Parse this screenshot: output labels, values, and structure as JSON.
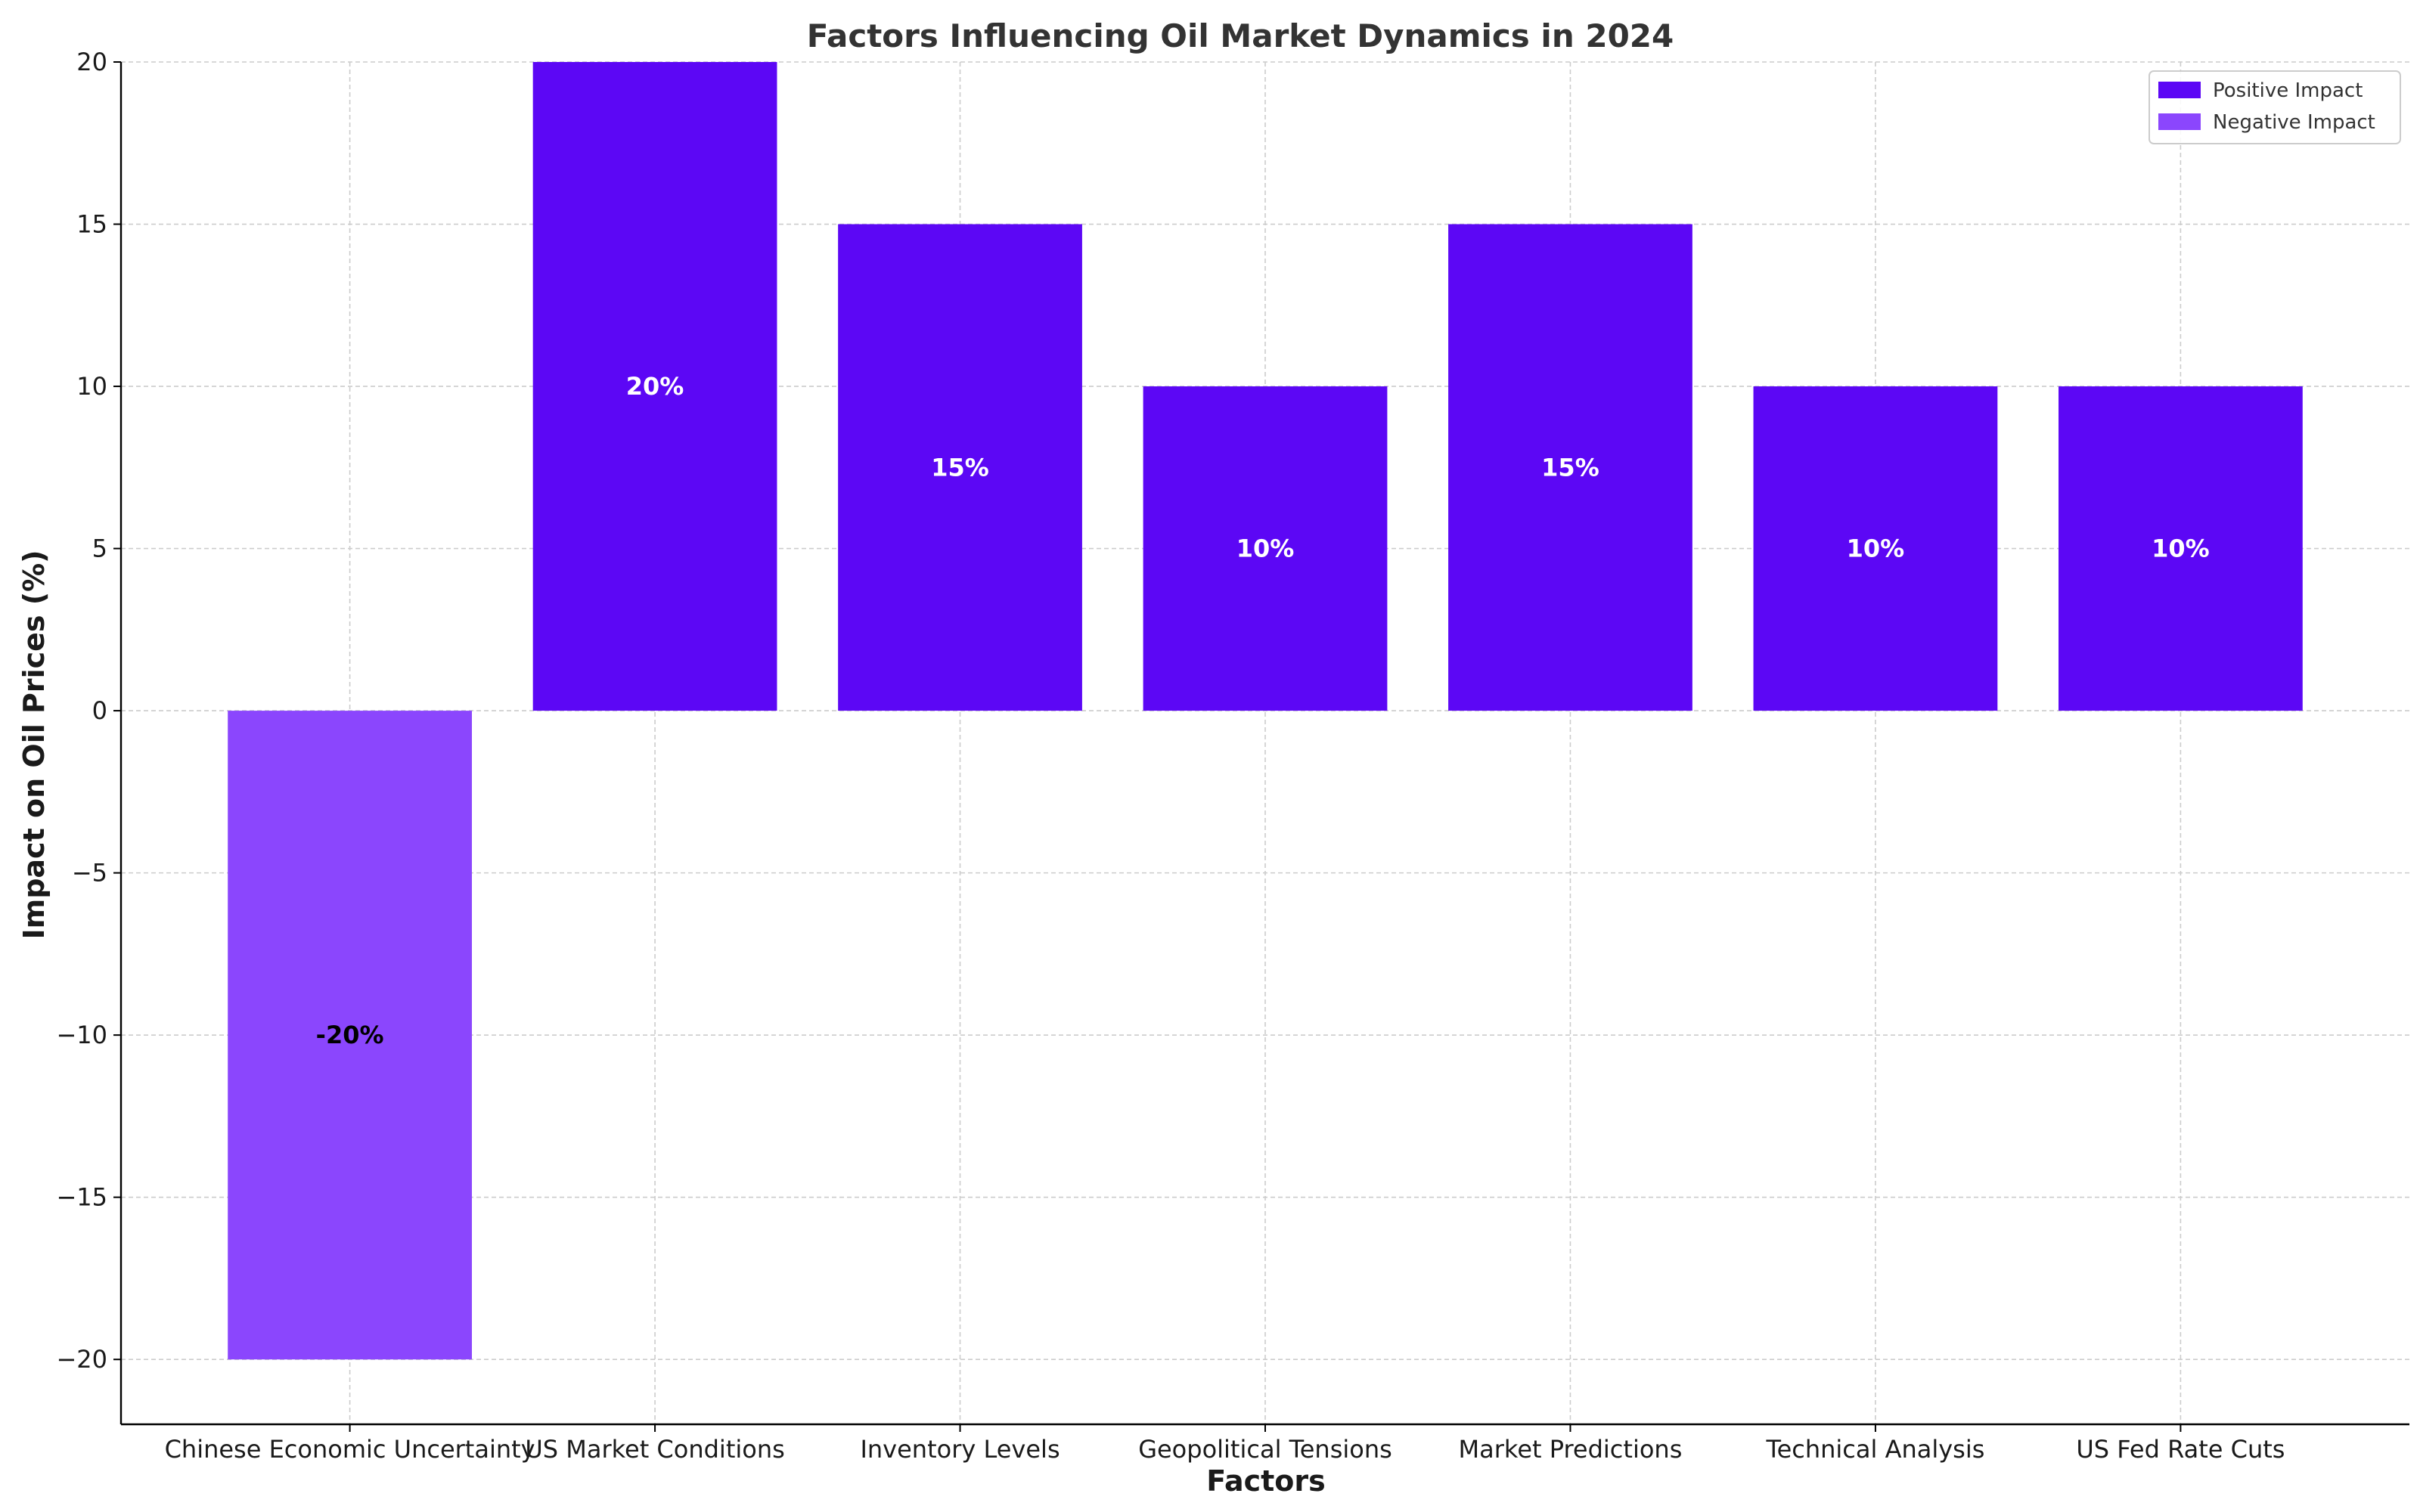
{
  "chart_data": {
    "type": "bar",
    "title": "Factors Influencing Oil Market Dynamics in 2024",
    "xlabel": "Factors",
    "ylabel": "Impact on Oil Prices (%)",
    "categories": [
      "Chinese Economic Uncertainty",
      "US Market Conditions",
      "Inventory Levels",
      "Geopolitical Tensions",
      "Market Predictions",
      "Technical Analysis",
      "US Fed Rate Cuts"
    ],
    "values": [
      -20,
      20,
      15,
      10,
      15,
      10,
      10
    ],
    "data_labels": [
      "-20%",
      "20%",
      "15%",
      "10%",
      "15%",
      "10%",
      "10%"
    ],
    "ylim": [
      -22,
      20
    ],
    "yticks": [
      -20,
      -15,
      -10,
      -5,
      0,
      5,
      10,
      15,
      20
    ],
    "ytick_labels": [
      "−20",
      "−15",
      "−10",
      "−5",
      "0",
      "5",
      "10",
      "15",
      "20"
    ],
    "grid": true,
    "legend": {
      "placement": "top-right",
      "entries": [
        {
          "name": "Positive Impact",
          "color": "#5c07f5"
        },
        {
          "name": "Negative Impact",
          "color": "#8b46fd"
        }
      ]
    },
    "colors": {
      "positive": "#5c07f5",
      "negative": "#8b46fd",
      "positive_label": "#ffffff",
      "negative_label": "#000000"
    }
  }
}
